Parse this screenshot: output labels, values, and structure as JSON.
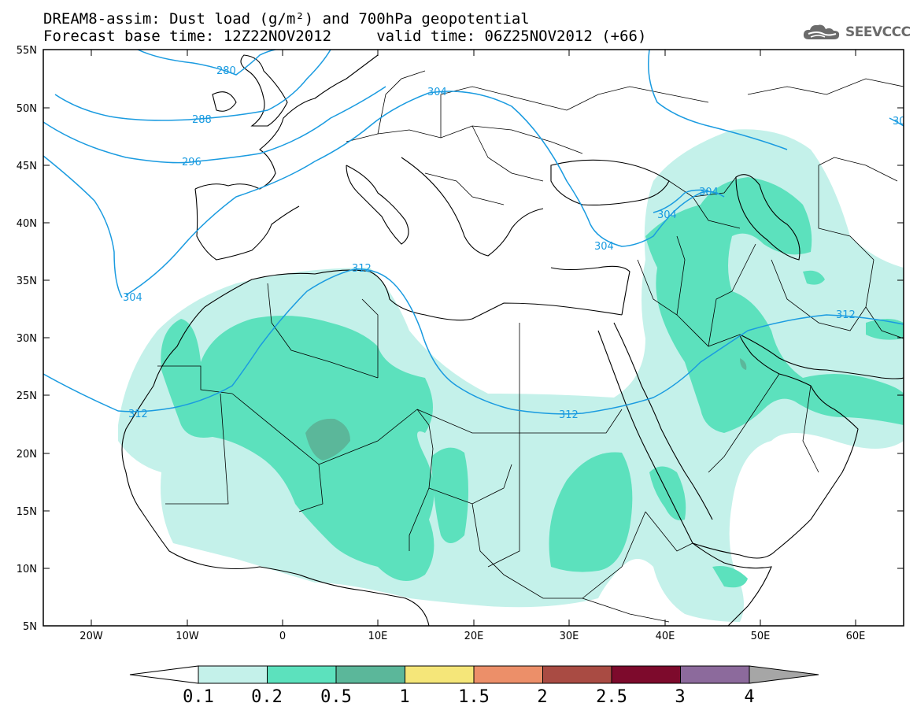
{
  "title": {
    "line1": "DREAM8-assim: Dust load (g/m²) and 700hPa geopotential",
    "line2": "Forecast base time: 12Z22NOV2012     valid time: 06Z25NOV2012 (+66)"
  },
  "logo": {
    "text": "SEEVCCC",
    "icon": "cloud-icon"
  },
  "axes": {
    "lat_labels": [
      "55N",
      "50N",
      "45N",
      "40N",
      "35N",
      "30N",
      "25N",
      "20N",
      "15N",
      "10N",
      "5N"
    ],
    "lon_labels": [
      "20W",
      "10W",
      "0",
      "10E",
      "20E",
      "30E",
      "40E",
      "50E",
      "60E"
    ]
  },
  "contours": {
    "color": "#1a9be0",
    "labels": [
      "280",
      "288",
      "296",
      "304",
      "304",
      "304",
      "304",
      "304",
      "312",
      "312",
      "312",
      "312",
      "30"
    ]
  },
  "colorbar": {
    "ticks": [
      "0.1",
      "0.2",
      "0.5",
      "1",
      "1.5",
      "2",
      "2.5",
      "3",
      "4"
    ],
    "colors": [
      "#c4f1ea",
      "#5ce1bd",
      "#5bb79a",
      "#f5e679",
      "#ec8f69",
      "#a94b43",
      "#7d0a2c",
      "#8c6a9c"
    ],
    "under_color": "#ffffff",
    "over_color": "#a6a6a6"
  },
  "dust_colors": {
    "light": "#c4f1ea",
    "medium": "#5ce1bd",
    "dark": "#5bb79a"
  }
}
